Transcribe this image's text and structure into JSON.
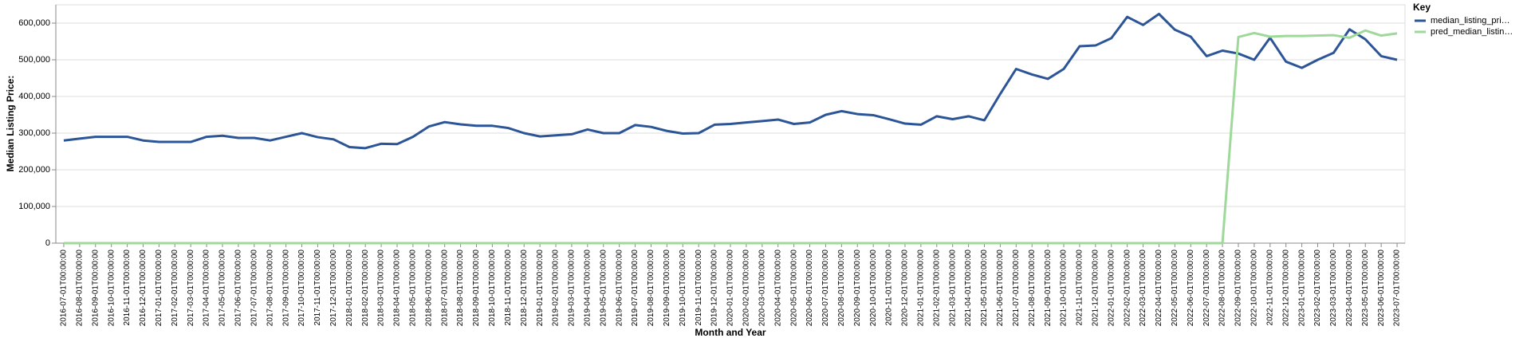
{
  "chart_data": {
    "type": "line",
    "y_label": "Median Listing Price:",
    "x_label": "Month and Year",
    "legend_title": "Key",
    "legend_position": "right",
    "grid": true,
    "ylim": [
      0,
      650000
    ],
    "yticks": [
      0,
      {
        "value": 100000,
        "label": "100,000"
      },
      {
        "value": 200000,
        "label": "200,000"
      },
      {
        "value": 300000,
        "label": "300,000"
      },
      {
        "value": 400000,
        "label": "400,000"
      },
      {
        "value": 500000,
        "label": "500,000"
      },
      {
        "value": 600000,
        "label": "600,000"
      }
    ],
    "categories": [
      "2016-07-01T00:00:00",
      "2016-08-01T00:00:00",
      "2016-09-01T00:00:00",
      "2016-10-01T00:00:00",
      "2016-11-01T00:00:00",
      "2016-12-01T00:00:00",
      "2017-01-01T00:00:00",
      "2017-02-01T00:00:00",
      "2017-03-01T00:00:00",
      "2017-04-01T00:00:00",
      "2017-05-01T00:00:00",
      "2017-06-01T00:00:00",
      "2017-07-01T00:00:00",
      "2017-08-01T00:00:00",
      "2017-09-01T00:00:00",
      "2017-10-01T00:00:00",
      "2017-11-01T00:00:00",
      "2017-12-01T00:00:00",
      "2018-01-01T00:00:00",
      "2018-02-01T00:00:00",
      "2018-03-01T00:00:00",
      "2018-04-01T00:00:00",
      "2018-05-01T00:00:00",
      "2018-06-01T00:00:00",
      "2018-07-01T00:00:00",
      "2018-08-01T00:00:00",
      "2018-09-01T00:00:00",
      "2018-10-01T00:00:00",
      "2018-11-01T00:00:00",
      "2018-12-01T00:00:00",
      "2019-01-01T00:00:00",
      "2019-02-01T00:00:00",
      "2019-03-01T00:00:00",
      "2019-04-01T00:00:00",
      "2019-05-01T00:00:00",
      "2019-06-01T00:00:00",
      "2019-07-01T00:00:00",
      "2019-08-01T00:00:00",
      "2019-09-01T00:00:00",
      "2019-10-01T00:00:00",
      "2019-11-01T00:00:00",
      "2019-12-01T00:00:00",
      "2020-01-01T00:00:00",
      "2020-02-01T00:00:00",
      "2020-03-01T00:00:00",
      "2020-04-01T00:00:00",
      "2020-05-01T00:00:00",
      "2020-06-01T00:00:00",
      "2020-07-01T00:00:00",
      "2020-08-01T00:00:00",
      "2020-09-01T00:00:00",
      "2020-10-01T00:00:00",
      "2020-11-01T00:00:00",
      "2020-12-01T00:00:00",
      "2021-01-01T00:00:00",
      "2021-02-01T00:00:00",
      "2021-03-01T00:00:00",
      "2021-04-01T00:00:00",
      "2021-05-01T00:00:00",
      "2021-06-01T00:00:00",
      "2021-07-01T00:00:00",
      "2021-08-01T00:00:00",
      "2021-09-01T00:00:00",
      "2021-10-01T00:00:00",
      "2021-11-01T00:00:00",
      "2021-12-01T00:00:00",
      "2022-01-01T00:00:00",
      "2022-02-01T00:00:00",
      "2022-03-01T00:00:00",
      "2022-04-01T00:00:00",
      "2022-05-01T00:00:00",
      "2022-06-01T00:00:00",
      "2022-07-01T00:00:00",
      "2022-08-01T00:00:00",
      "2022-09-01T00:00:00",
      "2022-10-01T00:00:00",
      "2022-11-01T00:00:00",
      "2022-12-01T00:00:00",
      "2023-01-01T00:00:00",
      "2023-02-01T00:00:00",
      "2023-03-01T00:00:00",
      "2023-04-01T00:00:00",
      "2023-05-01T00:00:00",
      "2023-06-01T00:00:00",
      "2023-07-01T00:00:00"
    ],
    "series": [
      {
        "name": "median_listing_pri…",
        "color": "#2c5597",
        "values": [
          280000,
          285000,
          290000,
          290000,
          290000,
          280000,
          276000,
          276000,
          276000,
          290000,
          293000,
          287000,
          287000,
          280000,
          290000,
          300000,
          289000,
          283000,
          262000,
          259000,
          271000,
          270000,
          290000,
          318000,
          330000,
          324000,
          320000,
          320000,
          314000,
          300000,
          291000,
          294000,
          297000,
          310000,
          300000,
          300000,
          322000,
          317000,
          306000,
          299000,
          300000,
          323000,
          325000,
          329000,
          333000,
          337000,
          325000,
          329000,
          350000,
          360000,
          352000,
          349000,
          338000,
          326000,
          323000,
          346000,
          338000,
          346000,
          335000,
          407000,
          475000,
          460000,
          448000,
          475000,
          537000,
          539000,
          559000,
          617000,
          595000,
          625000,
          582000,
          563000,
          510000,
          525000,
          517000,
          500000,
          560000,
          495000,
          478000,
          500000,
          519000,
          583000,
          556000,
          510000,
          500000
        ]
      },
      {
        "name": "pred_median_listin…",
        "color": "#9ed99a",
        "values": [
          0,
          0,
          0,
          0,
          0,
          0,
          0,
          0,
          0,
          0,
          0,
          0,
          0,
          0,
          0,
          0,
          0,
          0,
          0,
          0,
          0,
          0,
          0,
          0,
          0,
          0,
          0,
          0,
          0,
          0,
          0,
          0,
          0,
          0,
          0,
          0,
          0,
          0,
          0,
          0,
          0,
          0,
          0,
          0,
          0,
          0,
          0,
          0,
          0,
          0,
          0,
          0,
          0,
          0,
          0,
          0,
          0,
          0,
          0,
          0,
          0,
          0,
          0,
          0,
          0,
          0,
          0,
          0,
          0,
          0,
          0,
          0,
          0,
          0,
          562000,
          573000,
          563000,
          565000,
          565000,
          566000,
          567000,
          560000,
          580000,
          566000,
          572000
        ]
      }
    ]
  }
}
